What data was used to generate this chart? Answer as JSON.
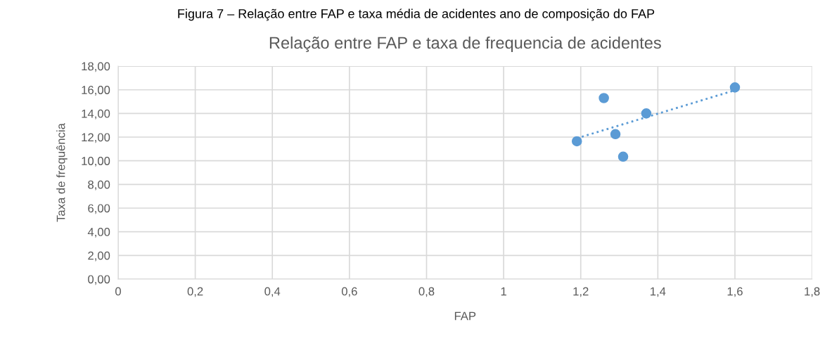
{
  "chart_data": {
    "type": "scatter",
    "title": "Relação entre FAP e taxa de frequencia de acidentes",
    "xlabel": "FAP",
    "ylabel": "Taxa de frequência",
    "annotations": [
      "Figura 7 – Relação entre FAP e taxa média de acidentes ano de composição do FAP"
    ],
    "series": [
      {
        "color": "#5b9bd5",
        "x": [
          1.19,
          1.26,
          1.29,
          1.31,
          1.37,
          1.6
        ],
        "values": [
          11.65,
          15.3,
          12.25,
          10.35,
          14.0,
          16.2
        ],
        "marker": "circle"
      },
      {
        "type": "line",
        "color": "#5b9bd5",
        "x": [
          1.19,
          1.6
        ],
        "values": [
          11.9,
          15.96
        ],
        "line_style": "dotted",
        "marker": "none"
      }
    ],
    "xlim": [
      0,
      1.8
    ],
    "ylim": [
      0,
      18
    ],
    "xticks": [
      0,
      {
        "value": 0.2,
        "label": "0,2"
      },
      {
        "value": 0.4,
        "label": "0,4"
      },
      {
        "value": 0.6,
        "label": "0,6"
      },
      {
        "value": 0.8,
        "label": "0,8"
      },
      1,
      {
        "value": 1.2,
        "label": "1,2"
      },
      {
        "value": 1.4,
        "label": "1,4"
      },
      {
        "value": 1.6,
        "label": "1,6"
      },
      {
        "value": 1.8,
        "label": "1,8"
      }
    ],
    "yticks": [
      {
        "value": 0,
        "label": "0,00"
      },
      {
        "value": 2,
        "label": "2,00"
      },
      {
        "value": 4,
        "label": "4,00"
      },
      {
        "value": 6,
        "label": "6,00"
      },
      {
        "value": 8,
        "label": "8,00"
      },
      {
        "value": 10,
        "label": "10,00"
      },
      {
        "value": 12,
        "label": "12,00"
      },
      {
        "value": 14,
        "label": "14,00"
      },
      {
        "value": 16,
        "label": "16,00"
      },
      {
        "value": 18,
        "label": "18,00"
      }
    ],
    "grid": true,
    "legend": false
  }
}
